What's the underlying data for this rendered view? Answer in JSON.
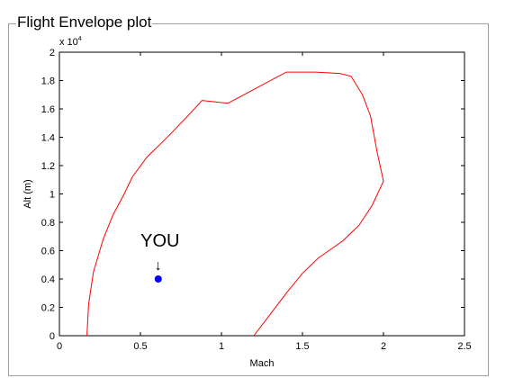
{
  "panel": {
    "title": "Flight Envelope plot"
  },
  "chart_data": {
    "type": "line",
    "title": "",
    "xlabel": "Mach",
    "ylabel": "Alt (m)",
    "y_exponent_label": "x 10",
    "y_exponent": "4",
    "xlim": [
      0,
      2.5
    ],
    "ylim": [
      0,
      2
    ],
    "xticks": [
      0,
      0.5,
      1,
      1.5,
      2,
      2.5
    ],
    "yticks": [
      0,
      0.2,
      0.4,
      0.6,
      0.8,
      1,
      1.2,
      1.4,
      1.6,
      1.8,
      2
    ],
    "xtick_labels": [
      "0",
      "0.5",
      "1",
      "1.5",
      "2",
      "2.5"
    ],
    "ytick_labels": [
      "0",
      "0.2",
      "0.4",
      "0.6",
      "0.8",
      "1",
      "1.2",
      "1.4",
      "1.6",
      "1.8",
      "2"
    ],
    "grid": false,
    "series": [
      {
        "color": "#ff0000",
        "x": [
          0.17,
          0.18,
          0.21,
          0.27,
          0.33,
          0.4,
          0.45,
          0.54,
          0.63,
          0.7,
          0.8,
          0.88,
          1.04,
          1.22,
          1.4,
          1.58,
          1.73,
          1.8,
          1.87,
          1.92,
          1.96,
          2.0,
          1.93,
          1.85,
          1.75,
          1.6,
          1.5,
          1.4,
          1.3,
          1.2
        ],
        "y": [
          0.0,
          0.22,
          0.45,
          0.68,
          0.85,
          1.0,
          1.12,
          1.26,
          1.36,
          1.44,
          1.56,
          1.66,
          1.64,
          1.75,
          1.86,
          1.86,
          1.85,
          1.83,
          1.7,
          1.55,
          1.3,
          1.09,
          0.92,
          0.78,
          0.67,
          0.55,
          0.44,
          0.3,
          0.15,
          0.0
        ]
      }
    ],
    "marker": {
      "x": 0.61,
      "y": 0.4,
      "color": "#0000ff",
      "label": "YOU",
      "arrow": "↓"
    }
  }
}
